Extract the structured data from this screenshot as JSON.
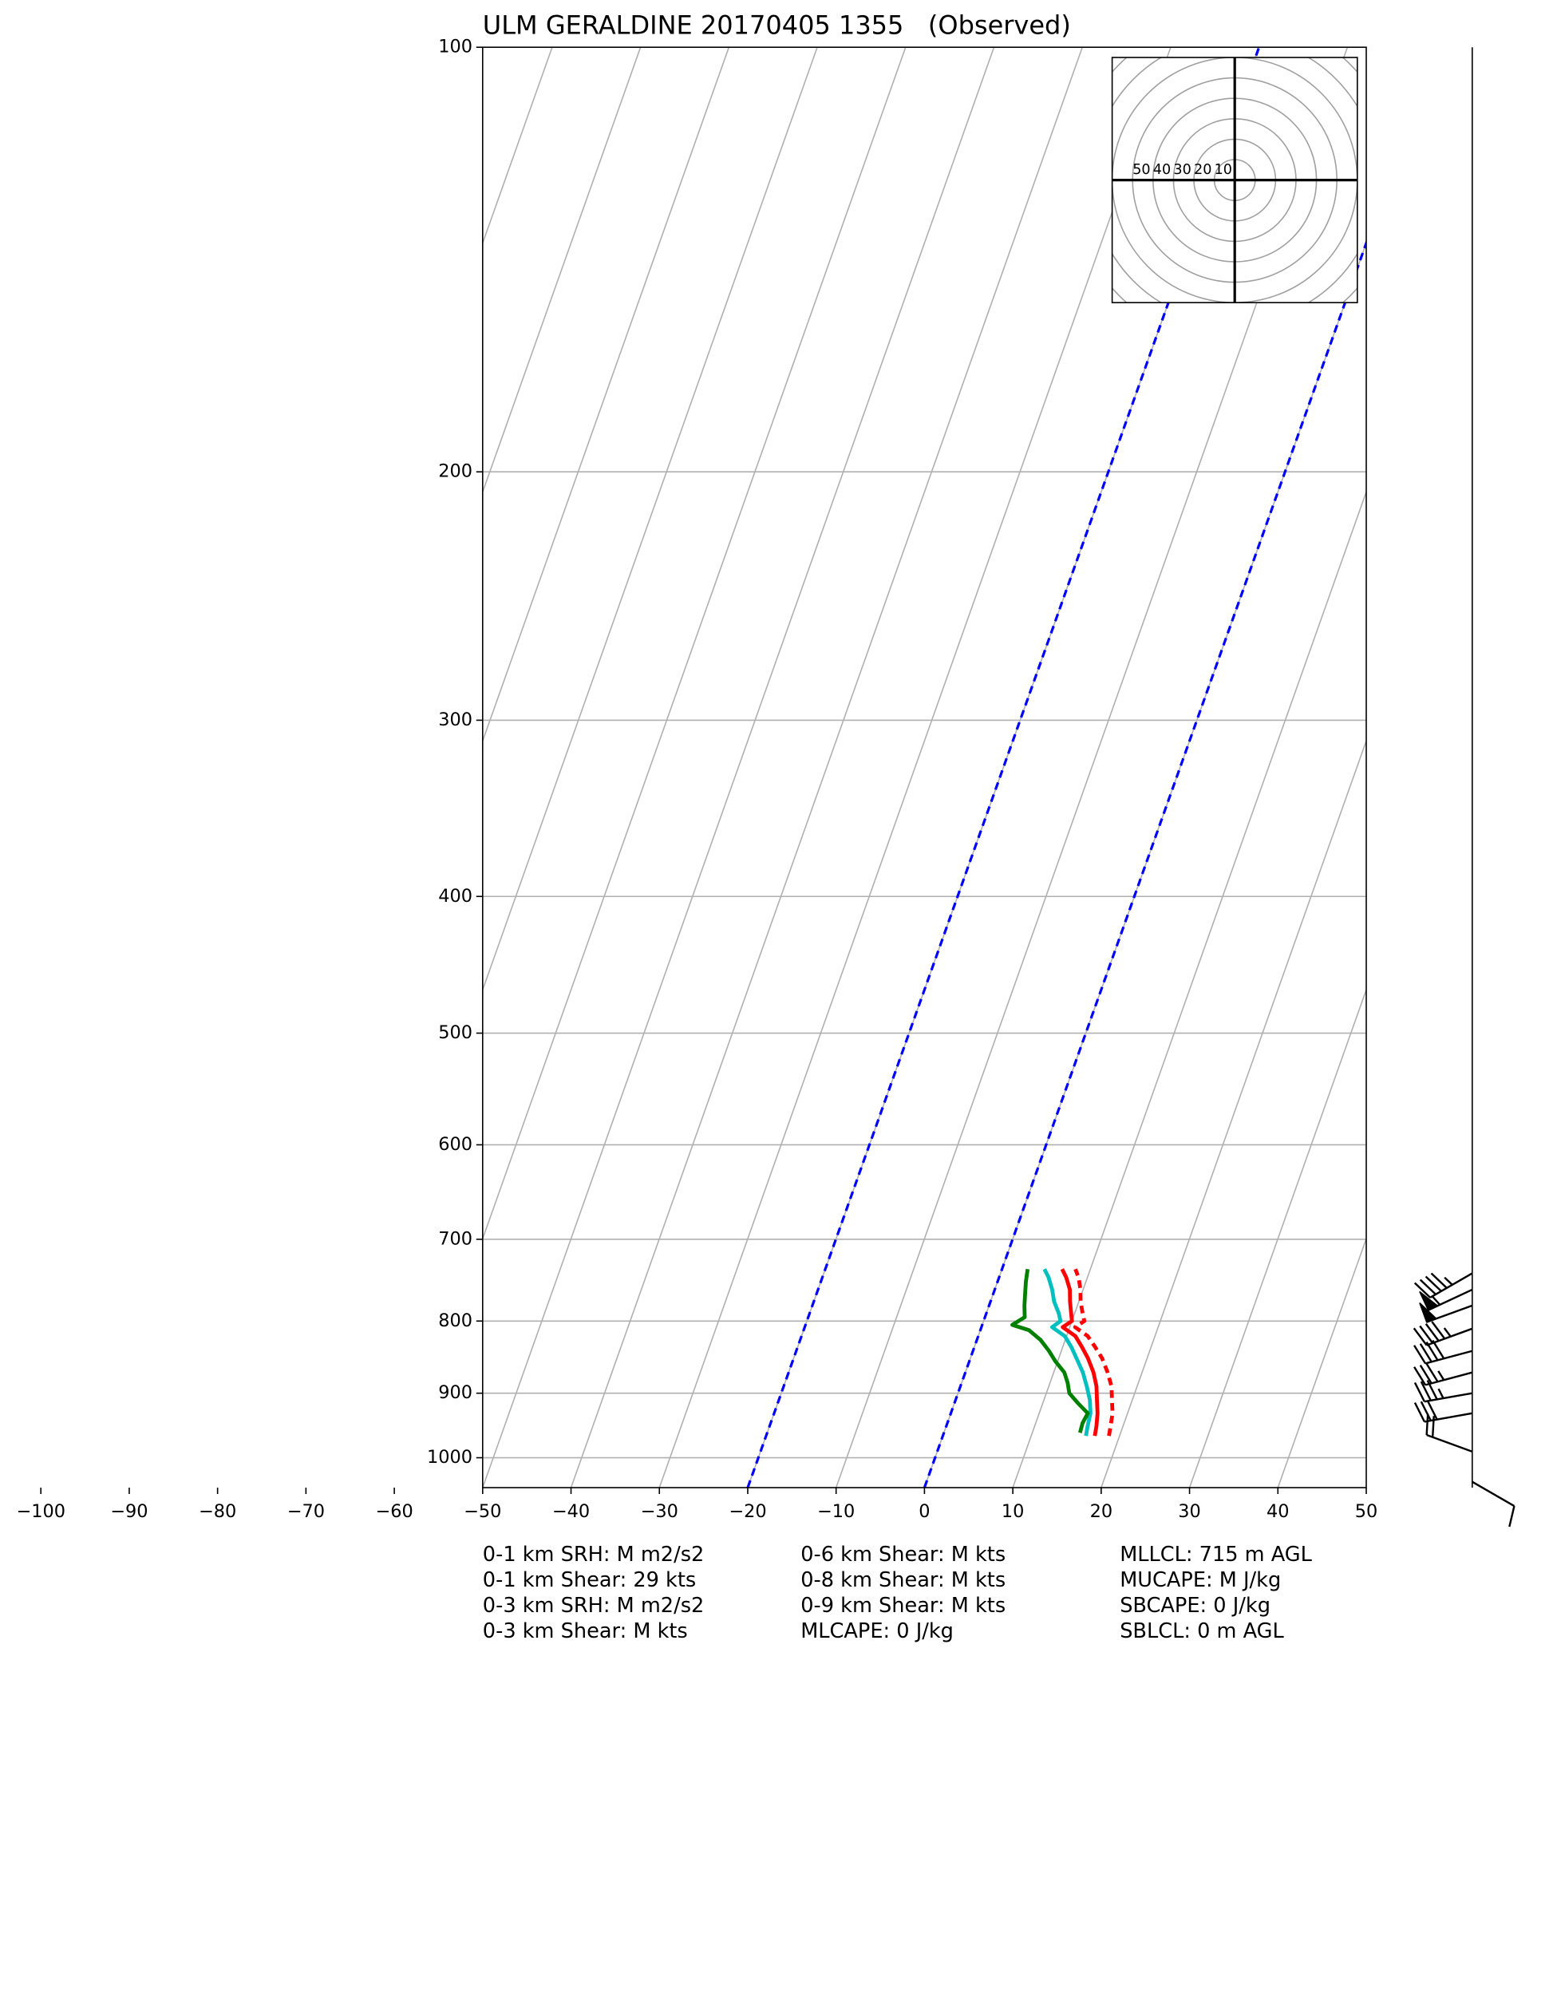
{
  "chart_data": {
    "type": "skewt",
    "title": "ULM GERALDINE 20170405 1355   (Observed)",
    "log_y": true,
    "grid": true,
    "ylim": [
      1050,
      100
    ],
    "yticks": [
      100,
      200,
      300,
      400,
      500,
      600,
      700,
      800,
      900,
      1000
    ],
    "xlim": [
      -50,
      50
    ],
    "xticks": [
      {
        "value": -100,
        "label": "−100"
      },
      {
        "value": -90,
        "label": "−90"
      },
      {
        "value": -80,
        "label": "−80"
      },
      {
        "value": -70,
        "label": "−70"
      },
      {
        "value": -60,
        "label": "−60"
      },
      {
        "value": -50,
        "label": "−50"
      },
      {
        "value": -40,
        "label": "−40"
      },
      {
        "value": -30,
        "label": "−30"
      },
      {
        "value": -20,
        "label": "−20"
      },
      {
        "value": -10,
        "label": "−10"
      },
      0,
      10,
      20,
      30,
      40,
      50
    ],
    "highlight_isotherms": {
      "values": [
        -20,
        0
      ],
      "color": "#0000ff"
    },
    "series": [
      {
        "color": "#ff0000",
        "dashed": true,
        "pressure": [
          965,
          950,
          930,
          910,
          890,
          870,
          850,
          835,
          820,
          808,
          800,
          790,
          775,
          760,
          745,
          735
        ],
        "values": [
          18.8,
          18.6,
          18.3,
          17.7,
          17.1,
          16.1,
          14.9,
          13.7,
          12.4,
          10.6,
          11.4,
          10.9,
          10.2,
          9.7,
          9.0,
          8.3
        ]
      },
      {
        "color": "#ff0000",
        "dashed": false,
        "pressure": [
          965,
          950,
          930,
          910,
          890,
          870,
          850,
          835,
          820,
          808,
          800,
          790,
          775,
          760,
          745,
          735
        ],
        "values": [
          17.2,
          17.0,
          16.6,
          16.0,
          15.4,
          14.5,
          13.3,
          12.2,
          11.0,
          9.2,
          10.0,
          9.6,
          9.0,
          8.5,
          7.6,
          6.8
        ]
      },
      {
        "color": "#00bfbf",
        "dashed": false,
        "pressure": [
          965,
          950,
          930,
          910,
          890,
          870,
          850,
          835,
          820,
          808,
          800,
          790,
          775,
          760,
          745,
          735
        ],
        "values": [
          16.2,
          16.0,
          15.8,
          15.2,
          14.3,
          13.3,
          12.0,
          11.0,
          9.8,
          8.0,
          8.7,
          8.2,
          7.2,
          6.5,
          5.6,
          4.8
        ]
      },
      {
        "color": "#008000",
        "dashed": false,
        "pressure": [
          960,
          945,
          930,
          915,
          900,
          885,
          870,
          855,
          840,
          825,
          812,
          805,
          795,
          780,
          765,
          750,
          735
        ],
        "values": [
          15.4,
          15.3,
          15.5,
          14.0,
          12.6,
          12.0,
          11.2,
          9.8,
          8.6,
          7.2,
          5.5,
          3.4,
          4.5,
          4.0,
          3.6,
          3.2,
          2.9
        ]
      }
    ],
    "wind": {
      "pressure": [
        1040,
        990,
        930,
        900,
        870,
        840,
        810,
        780,
        760,
        740
      ],
      "direction": [
        120,
        290,
        260,
        260,
        255,
        255,
        250,
        250,
        245,
        240
      ],
      "speed": [
        10,
        20,
        30,
        35,
        35,
        40,
        45,
        50,
        55,
        45
      ]
    },
    "hodograph": {
      "rings": [
        50,
        40,
        30,
        20,
        10
      ]
    },
    "stats": [
      "0-1 km SRH: M m2/s2",
      "0-1 km Shear: 29 kts",
      "0-3 km SRH: M m2/s2",
      "0-3 km Shear: M kts",
      "0-6 km Shear: M kts",
      "0-8 km Shear: M kts",
      "0-9 km Shear: M kts",
      "MLCAPE: 0 J/kg",
      "MLLCL: 715 m AGL",
      "MUCAPE: M J/kg",
      "SBCAPE: 0 J/kg",
      "SBLCL: 0 m AGL"
    ]
  }
}
